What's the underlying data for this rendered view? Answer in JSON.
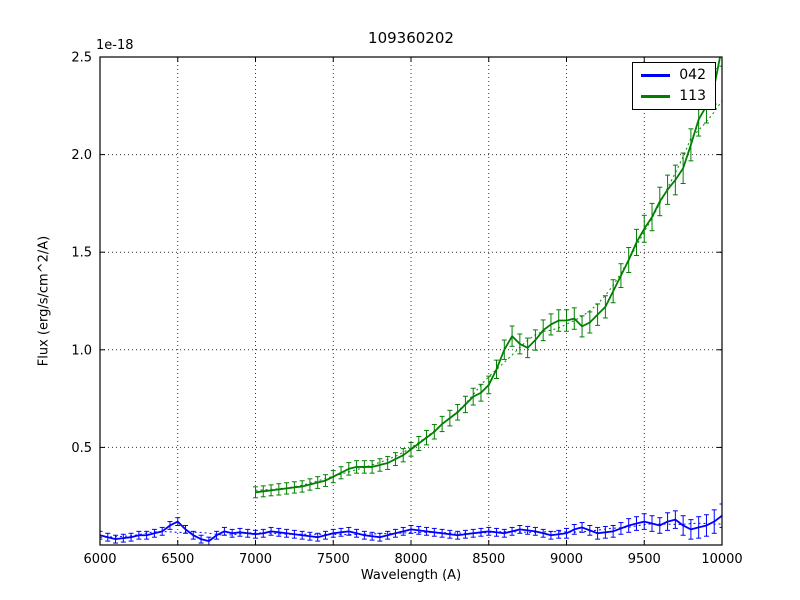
{
  "figure": {
    "title": "109360202",
    "offset_text": "1e-18",
    "xlabel": "Wavelength (A)",
    "ylabel": "Flux (erg/s/cm^2/A)"
  },
  "legend": {
    "position": "upper right",
    "entries": [
      {
        "label": "042",
        "color": "#0000ff"
      },
      {
        "label": "113",
        "color": "#008000"
      }
    ]
  },
  "chart_data": {
    "type": "line",
    "title": "109360202",
    "xlabel": "Wavelength (A)",
    "ylabel": "Flux (erg/s/cm^2/A)",
    "y_offset_label": "1e-18",
    "xlim": [
      6000,
      10000
    ],
    "ylim": [
      0,
      2.5
    ],
    "x_ticks": [
      6000,
      6500,
      7000,
      7500,
      8000,
      8500,
      9000,
      9500,
      10000
    ],
    "y_ticks": [
      0.5,
      1.0,
      1.5,
      2.0,
      2.5
    ],
    "grid": true,
    "grid_style": "dotted",
    "legend_position": "upper right",
    "series": [
      {
        "name": "042",
        "color": "#0000ff",
        "style": "solid-with-errorbars-and-dotted-fit",
        "x": [
          6000,
          6050,
          6100,
          6150,
          6200,
          6250,
          6300,
          6350,
          6400,
          6450,
          6500,
          6550,
          6600,
          6650,
          6700,
          6750,
          6800,
          6850,
          6900,
          6950,
          7000,
          7050,
          7100,
          7150,
          7200,
          7250,
          7300,
          7350,
          7400,
          7450,
          7500,
          7550,
          7600,
          7650,
          7700,
          7750,
          7800,
          7850,
          7900,
          7950,
          8000,
          8050,
          8100,
          8150,
          8200,
          8250,
          8300,
          8350,
          8400,
          8450,
          8500,
          8550,
          8600,
          8650,
          8700,
          8750,
          8800,
          8850,
          8900,
          8950,
          9000,
          9050,
          9100,
          9150,
          9200,
          9250,
          9300,
          9350,
          9400,
          9450,
          9500,
          9550,
          9600,
          9650,
          9700,
          9750,
          9800,
          9850,
          9900,
          9950,
          10000
        ],
        "y": [
          0.05,
          0.04,
          0.03,
          0.035,
          0.04,
          0.05,
          0.05,
          0.06,
          0.07,
          0.1,
          0.12,
          0.08,
          0.05,
          0.03,
          0.02,
          0.05,
          0.07,
          0.06,
          0.065,
          0.06,
          0.055,
          0.06,
          0.07,
          0.065,
          0.06,
          0.055,
          0.05,
          0.045,
          0.04,
          0.05,
          0.06,
          0.065,
          0.07,
          0.06,
          0.05,
          0.045,
          0.04,
          0.05,
          0.06,
          0.07,
          0.08,
          0.075,
          0.07,
          0.065,
          0.06,
          0.055,
          0.05,
          0.055,
          0.06,
          0.065,
          0.07,
          0.065,
          0.06,
          0.07,
          0.08,
          0.075,
          0.07,
          0.06,
          0.05,
          0.055,
          0.06,
          0.08,
          0.09,
          0.075,
          0.06,
          0.065,
          0.07,
          0.085,
          0.1,
          0.11,
          0.12,
          0.11,
          0.1,
          0.12,
          0.13,
          0.1,
          0.08,
          0.09,
          0.1,
          0.12,
          0.15
        ],
        "yerr": [
          0.02,
          0.02,
          0.02,
          0.02,
          0.02,
          0.02,
          0.02,
          0.02,
          0.02,
          0.02,
          0.02,
          0.02,
          0.02,
          0.02,
          0.02,
          0.02,
          0.02,
          0.02,
          0.02,
          0.02,
          0.02,
          0.02,
          0.02,
          0.02,
          0.02,
          0.02,
          0.02,
          0.02,
          0.02,
          0.02,
          0.02,
          0.02,
          0.02,
          0.02,
          0.02,
          0.02,
          0.02,
          0.02,
          0.02,
          0.02,
          0.02,
          0.02,
          0.02,
          0.02,
          0.02,
          0.02,
          0.02,
          0.02,
          0.02,
          0.02,
          0.02,
          0.02,
          0.02,
          0.02,
          0.02,
          0.02,
          0.02,
          0.02,
          0.02,
          0.02,
          0.025,
          0.025,
          0.025,
          0.025,
          0.03,
          0.03,
          0.03,
          0.03,
          0.035,
          0.035,
          0.04,
          0.04,
          0.04,
          0.045,
          0.045,
          0.05,
          0.05,
          0.055,
          0.055,
          0.06,
          0.06
        ]
      },
      {
        "name": "113",
        "color": "#008000",
        "style": "solid-with-errorbars-and-dotted-fit",
        "x": [
          7000,
          7050,
          7100,
          7150,
          7200,
          7250,
          7300,
          7350,
          7400,
          7450,
          7500,
          7550,
          7600,
          7650,
          7700,
          7750,
          7800,
          7850,
          7900,
          7950,
          8000,
          8050,
          8100,
          8150,
          8200,
          8250,
          8300,
          8350,
          8400,
          8450,
          8500,
          8550,
          8600,
          8650,
          8700,
          8750,
          8800,
          8850,
          8900,
          8950,
          9000,
          9050,
          9100,
          9150,
          9200,
          9250,
          9300,
          9350,
          9400,
          9450,
          9500,
          9550,
          9600,
          9650,
          9700,
          9750,
          9800,
          9850,
          9900,
          9950,
          10000
        ],
        "y": [
          0.27,
          0.275,
          0.28,
          0.285,
          0.29,
          0.295,
          0.3,
          0.31,
          0.32,
          0.33,
          0.35,
          0.37,
          0.39,
          0.4,
          0.4,
          0.4,
          0.41,
          0.42,
          0.44,
          0.46,
          0.49,
          0.52,
          0.55,
          0.58,
          0.62,
          0.65,
          0.68,
          0.72,
          0.76,
          0.78,
          0.82,
          0.9,
          1.0,
          1.07,
          1.03,
          1.01,
          1.05,
          1.1,
          1.13,
          1.15,
          1.15,
          1.16,
          1.12,
          1.14,
          1.18,
          1.22,
          1.3,
          1.38,
          1.46,
          1.55,
          1.62,
          1.68,
          1.76,
          1.82,
          1.87,
          1.93,
          2.05,
          2.18,
          2.25,
          2.35,
          2.55
        ],
        "yerr": [
          0.028,
          0.028,
          0.028,
          0.029,
          0.029,
          0.029,
          0.029,
          0.029,
          0.03,
          0.03,
          0.031,
          0.031,
          0.032,
          0.032,
          0.032,
          0.032,
          0.032,
          0.033,
          0.033,
          0.034,
          0.035,
          0.036,
          0.037,
          0.037,
          0.039,
          0.04,
          0.04,
          0.042,
          0.043,
          0.043,
          0.045,
          0.047,
          0.05,
          0.052,
          0.051,
          0.05,
          0.052,
          0.053,
          0.054,
          0.055,
          0.055,
          0.055,
          0.054,
          0.054,
          0.055,
          0.057,
          0.059,
          0.061,
          0.064,
          0.067,
          0.069,
          0.07,
          0.073,
          0.075,
          0.076,
          0.078,
          0.082,
          0.085,
          0.088,
          0.091,
          0.097
        ]
      }
    ]
  }
}
